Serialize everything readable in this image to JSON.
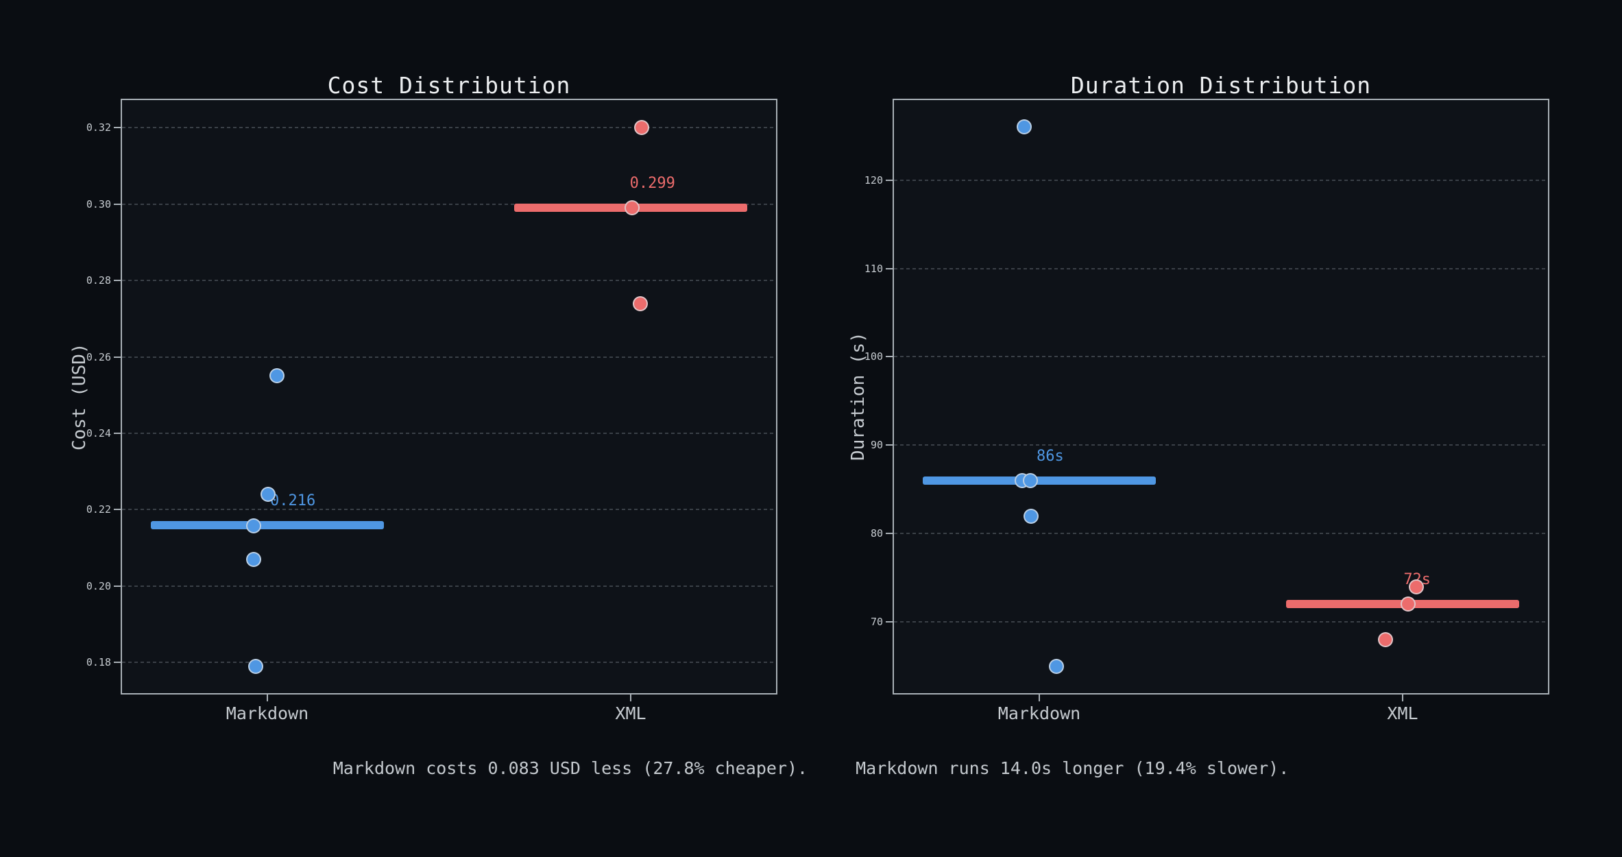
{
  "figure": {
    "background": "#0a0d12",
    "axes_background": "#0e1218",
    "spine_color": "#a9b0b6",
    "grid_color": "#3a4047",
    "tick_label_color": "#c6cbd0",
    "title_color": "#eceef0",
    "summary_text_color": "#c4c9ce"
  },
  "colors": {
    "markdown": "#4f97e3",
    "xml": "#ec6c6c",
    "point_edge": "rgba(222,226,230,0.75)"
  },
  "summary": {
    "cost_text": "Markdown costs 0.083 USD less (27.8% cheaper).",
    "duration_text": "Markdown runs 14.0s longer (19.4% slower)."
  },
  "chart_data": [
    {
      "type": "strip",
      "title": "Cost Distribution",
      "ylabel": "Cost (USD)",
      "categories": [
        "Markdown",
        "XML"
      ],
      "xlim": [
        -0.4,
        1.4
      ],
      "ylim": [
        0.172,
        0.3272
      ],
      "grid": true,
      "legend": false,
      "median_line_halfwidth": 0.32,
      "yticks": [
        {
          "v": 0.18,
          "label": "0.18"
        },
        {
          "v": 0.2,
          "label": "0.20"
        },
        {
          "v": 0.22,
          "label": "0.22"
        },
        {
          "v": 0.24,
          "label": "0.24"
        },
        {
          "v": 0.26,
          "label": "0.26"
        },
        {
          "v": 0.28,
          "label": "0.28"
        },
        {
          "v": 0.3,
          "label": "0.30"
        },
        {
          "v": 0.32,
          "label": "0.32"
        }
      ],
      "series": [
        {
          "name": "Markdown",
          "color_key": "markdown",
          "category_x": 0,
          "median": 0.216,
          "median_label": "0.216",
          "label_dx": 0.07,
          "points": [
            {
              "dx": 0.026,
              "y": 0.255
            },
            {
              "dx": 0.001,
              "y": 0.224
            },
            {
              "dx": -0.038,
              "y": 0.2157
            },
            {
              "dx": -0.037,
              "y": 0.207
            },
            {
              "dx": -0.032,
              "y": 0.179
            }
          ]
        },
        {
          "name": "XML",
          "color_key": "xml",
          "category_x": 1,
          "median": 0.299,
          "median_label": "0.299",
          "label_dx": 0.06,
          "points": [
            {
              "dx": 0.03,
              "y": 0.32
            },
            {
              "dx": 0.004,
              "y": 0.299
            },
            {
              "dx": 0.026,
              "y": 0.274
            }
          ]
        }
      ]
    },
    {
      "type": "strip",
      "title": "Duration Distribution",
      "ylabel": "Duration (s)",
      "categories": [
        "Markdown",
        "XML"
      ],
      "xlim": [
        -0.4,
        1.4
      ],
      "ylim": [
        61.95,
        129.05
      ],
      "grid": true,
      "legend": false,
      "median_line_halfwidth": 0.32,
      "yticks": [
        {
          "v": 70,
          "label": "70"
        },
        {
          "v": 80,
          "label": "80"
        },
        {
          "v": 90,
          "label": "90"
        },
        {
          "v": 100,
          "label": "100"
        },
        {
          "v": 110,
          "label": "110"
        },
        {
          "v": 120,
          "label": "120"
        }
      ],
      "series": [
        {
          "name": "Markdown",
          "color_key": "markdown",
          "category_x": 0,
          "median": 86,
          "median_label": "86s",
          "label_dx": 0.03,
          "points": [
            {
              "dx": -0.042,
              "y": 126
            },
            {
              "dx": -0.047,
              "y": 86
            },
            {
              "dx": -0.024,
              "y": 86
            },
            {
              "dx": -0.023,
              "y": 82
            },
            {
              "dx": 0.047,
              "y": 65
            }
          ]
        },
        {
          "name": "XML",
          "color_key": "xml",
          "category_x": 1,
          "median": 72,
          "median_label": "72s",
          "label_dx": 0.04,
          "points": [
            {
              "dx": 0.038,
              "y": 74
            },
            {
              "dx": 0.015,
              "y": 72
            },
            {
              "dx": -0.047,
              "y": 68
            }
          ]
        }
      ]
    }
  ]
}
